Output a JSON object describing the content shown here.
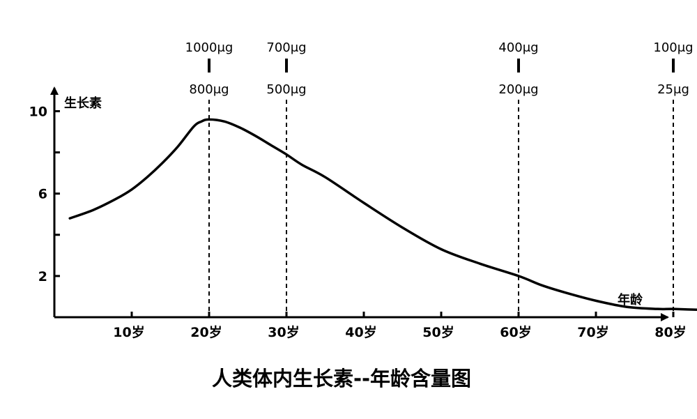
{
  "chart_data": {
    "type": "line",
    "title": "人类体内生长素--年龄含量图",
    "xlabel": "年龄",
    "ylabel": "生长素",
    "x_unit": "岁",
    "xlim": [
      0,
      85
    ],
    "ylim": [
      0,
      11
    ],
    "x_ticks": [
      10,
      20,
      30,
      40,
      50,
      60,
      70,
      80
    ],
    "x_tick_labels": [
      "10岁",
      "20岁",
      "30岁",
      "40岁",
      "50岁",
      "60岁",
      "70岁",
      "80岁"
    ],
    "y_ticks": [
      2,
      4,
      6,
      8,
      10
    ],
    "y_tick_labels": [
      "2",
      "",
      "6",
      "",
      "10"
    ],
    "grid": false,
    "series": [
      {
        "x": [
          2,
          5,
          8,
          10,
          12,
          14,
          16,
          18,
          19,
          20,
          22,
          24,
          26,
          28,
          30,
          32,
          35,
          40,
          45,
          50,
          55,
          60,
          63,
          66,
          70,
          74,
          78,
          80,
          84
        ],
        "y": [
          4.8,
          5.2,
          5.75,
          6.2,
          6.8,
          7.5,
          8.3,
          9.25,
          9.5,
          9.6,
          9.5,
          9.2,
          8.8,
          8.35,
          7.9,
          7.4,
          6.8,
          5.55,
          4.35,
          3.3,
          2.6,
          2.0,
          1.55,
          1.2,
          0.8,
          0.5,
          0.4,
          0.4,
          0.35
        ]
      }
    ],
    "annotations": [
      {
        "x": 20,
        "upper": "1000μg",
        "lower": "800μg"
      },
      {
        "x": 30,
        "upper": "700μg",
        "lower": "500μg"
      },
      {
        "x": 60,
        "upper": "400μg",
        "lower": "200μg"
      },
      {
        "x": 80,
        "upper": "100μg",
        "lower": "25μg"
      }
    ]
  }
}
